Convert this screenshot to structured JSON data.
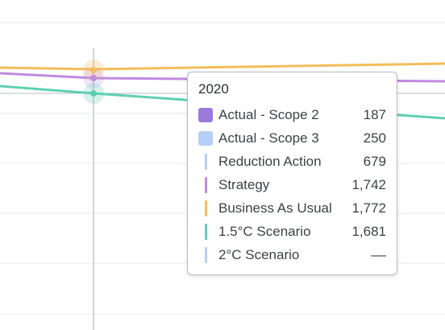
{
  "chart_data": {
    "type": "line",
    "grid": true,
    "hovered_x": "2020",
    "series": [
      {
        "name": "Actual - Scope 2",
        "color": "#9a7ad8",
        "values": [
          187
        ],
        "render": "box"
      },
      {
        "name": "Actual - Scope 3",
        "color": "#b5cff5",
        "values": [
          250
        ],
        "render": "box"
      },
      {
        "name": "Reduction Action",
        "color": "#b5cff5",
        "values": [
          679
        ],
        "render": "line"
      },
      {
        "name": "Strategy",
        "color": "#c08ae0",
        "values": [
          1742
        ],
        "render": "line"
      },
      {
        "name": "Business As Usual",
        "color": "#f2bd5a",
        "values": [
          1772
        ],
        "render": "line"
      },
      {
        "name": "1.5°C Scenario",
        "color": "#5fcfb4",
        "values": [
          1681
        ],
        "render": "line"
      },
      {
        "name": "2°C Scenario",
        "color": "#b5cff5",
        "values": [
          null
        ],
        "render": "line"
      }
    ]
  },
  "tooltip": {
    "title": "2020",
    "rows": [
      {
        "label": "Actual - Scope 2",
        "value": "187"
      },
      {
        "label": "Actual - Scope 3",
        "value": "250"
      },
      {
        "label": "Reduction Action",
        "value": "679"
      },
      {
        "label": "Strategy",
        "value": "1,742"
      },
      {
        "label": "Business As Usual",
        "value": "1,772"
      },
      {
        "label": "1.5°C Scenario",
        "value": "1,681"
      },
      {
        "label": "2°C Scenario",
        "value": "––"
      }
    ]
  },
  "colors": {
    "gridline": "#e6e8eb",
    "crosshair": "#c4c7cc",
    "baseline": "#b9bcc1"
  }
}
